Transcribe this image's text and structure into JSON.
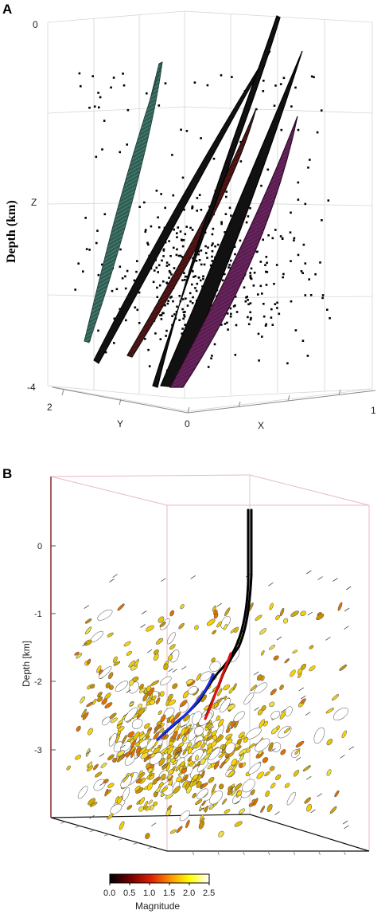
{
  "chart_data": [
    {
      "panel": "A",
      "type": "scatter",
      "zlabel": "Depth (km)",
      "axis_letters": {
        "x": "X",
        "y": "Y",
        "z": "Z"
      },
      "zlim": [
        -4,
        0
      ],
      "z_ticks": [
        "0",
        "Z",
        "-4"
      ],
      "x_ticks": [
        "0",
        "1"
      ],
      "y_ticks": [
        "2"
      ],
      "fault_planes": [
        {
          "name": "green plane",
          "color": "#2f5e55"
        },
        {
          "name": "black plane 1",
          "color": "#111111"
        },
        {
          "name": "dark red plane",
          "color": "#5a1414"
        },
        {
          "name": "black plane 2",
          "color": "#111111"
        },
        {
          "name": "black plane 3",
          "color": "#111111"
        },
        {
          "name": "purple plane",
          "color": "#5b1d52"
        }
      ],
      "point_color": "#000000"
    },
    {
      "panel": "B",
      "type": "scatter",
      "zlabel": "Depth [km]",
      "z_ticks": [
        "0",
        "-1",
        "-2",
        "-3"
      ],
      "zlim": [
        -3.6,
        0.8
      ],
      "legend": {
        "title": "Magnitude",
        "ticks": [
          "0.0",
          "0.5",
          "1.0",
          "1.5",
          "2.0",
          "2.5"
        ],
        "range": [
          0.0,
          2.5
        ],
        "colors": [
          "#000000",
          "#7a0000",
          "#e02000",
          "#ff9900",
          "#ffff00",
          "#ffffff"
        ]
      },
      "wells": [
        {
          "name": "well 1",
          "color": "#000000"
        },
        {
          "name": "well 2",
          "color": "#000000"
        },
        {
          "name": "blue section",
          "color": "#1a2de0"
        },
        {
          "name": "red section",
          "color": "#e01010"
        }
      ]
    }
  ],
  "labels": {
    "panel_a": "A",
    "panel_b": "B"
  }
}
